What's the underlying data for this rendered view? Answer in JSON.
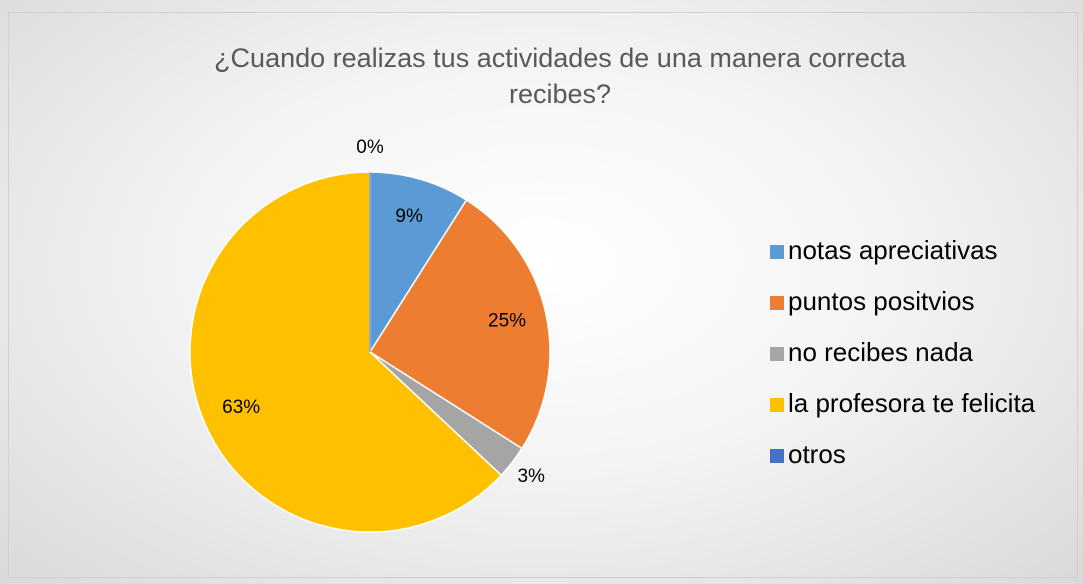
{
  "chart_data": {
    "type": "pie",
    "title": "¿Cuando realizas tus actividades de una manera correcta recibes?",
    "categories": [
      "notas apreciativas",
      "puntos positvios",
      "no recibes nada",
      "la profesora te felicita",
      "otros"
    ],
    "values": [
      9,
      25,
      3,
      63,
      0
    ],
    "value_labels": [
      "9%",
      "25%",
      "3%",
      "63%",
      "0%"
    ],
    "colors": [
      "#5b9bd5",
      "#ed7d31",
      "#a5a5a5",
      "#ffc000",
      "#4472c4"
    ],
    "legend": "right"
  }
}
